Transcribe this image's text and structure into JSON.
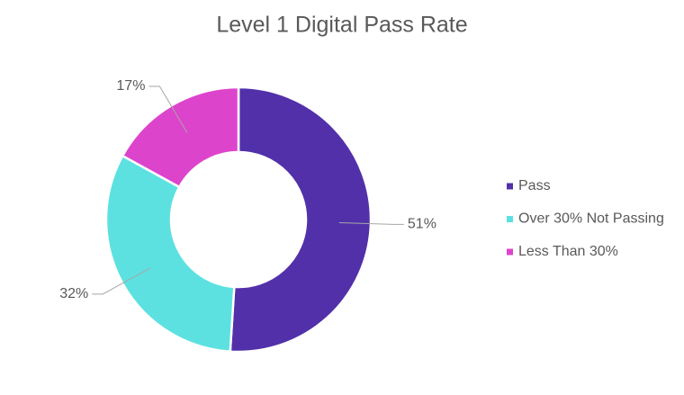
{
  "chart_data": {
    "type": "donut",
    "title": "Level 1 Digital Pass Rate",
    "categories": [
      "Pass",
      "Over 30% Not Passing",
      "Less Than 30%"
    ],
    "values": [
      51,
      32,
      17
    ],
    "value_labels": [
      "51%",
      "32%",
      "17%"
    ],
    "colors": [
      "#5230aa",
      "#5ce1e0",
      "#dd44cc"
    ],
    "legend": "right"
  }
}
